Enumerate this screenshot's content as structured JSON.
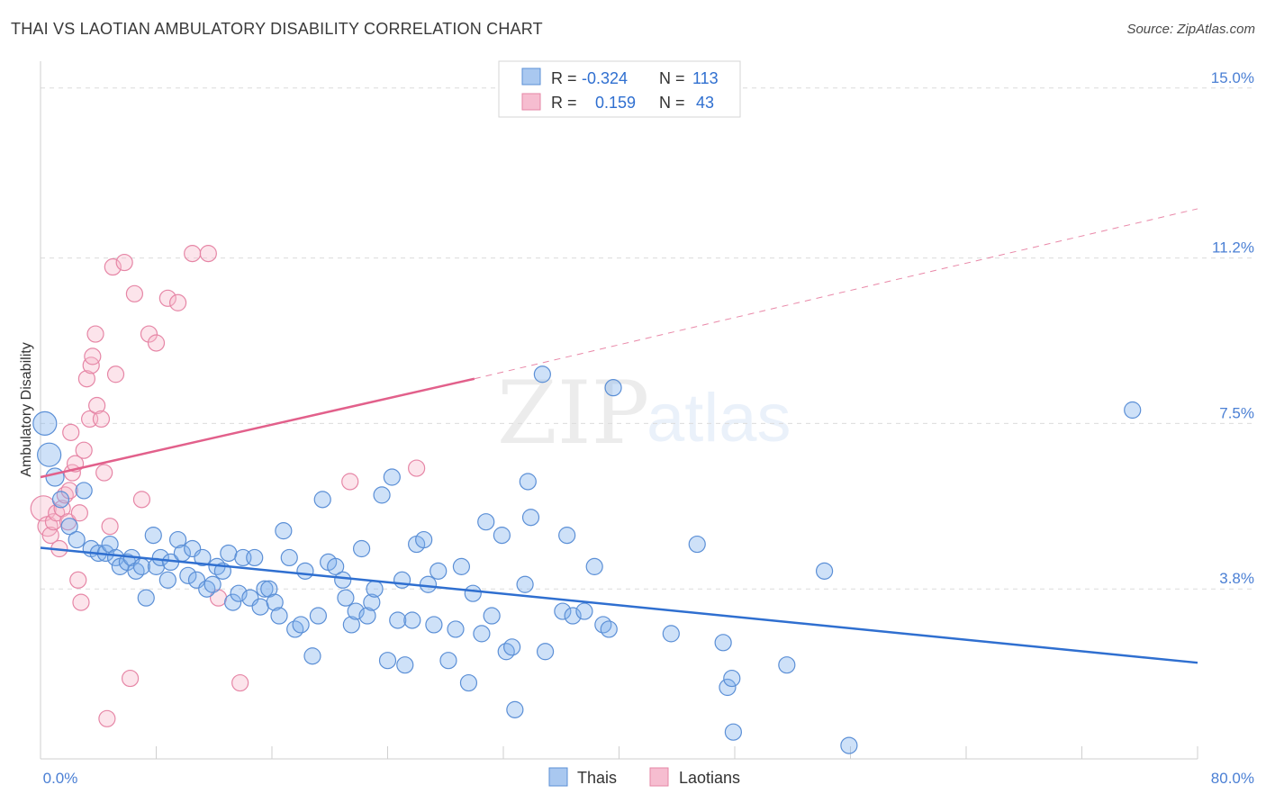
{
  "title": "THAI VS LAOTIAN AMBULATORY DISABILITY CORRELATION CHART",
  "source": "Source: ZipAtlas.com",
  "watermark": {
    "zip": "ZIP",
    "atlas": "atlas"
  },
  "legend_box": {
    "rows": [
      {
        "r_label": "R =",
        "r_value": "-0.324",
        "n_label": "N =",
        "n_value": "113",
        "color": "#a9c8f0",
        "stroke": "#5b8fd6"
      },
      {
        "r_label": "R =",
        "r_value": "0.159",
        "n_label": "N =",
        "n_value": "43",
        "color": "#f6bdd0",
        "stroke": "#e686a6"
      }
    ]
  },
  "bottom_legend": [
    {
      "label": "Thais",
      "color": "#a9c8f0",
      "stroke": "#5b8fd6"
    },
    {
      "label": "Laotians",
      "color": "#f6bdd0",
      "stroke": "#e686a6"
    }
  ],
  "chart_data": {
    "type": "scatter",
    "ylabel": "Ambulatory Disability",
    "xlabel": "",
    "xlim": [
      0,
      80
    ],
    "ylim": [
      0,
      15.6
    ],
    "x_tick_labels": {
      "left": "0.0%",
      "right": "80.0%"
    },
    "y_ticks": [
      {
        "value": 3.8,
        "label": "3.8%"
      },
      {
        "value": 7.5,
        "label": "7.5%"
      },
      {
        "value": 11.2,
        "label": "11.2%"
      },
      {
        "value": 15.0,
        "label": "15.0%"
      }
    ],
    "grid": "horizontal dashed",
    "legend": "top-center",
    "series": [
      {
        "name": "Thais",
        "color": "#7fb0ec",
        "stroke": "#5b8fd6",
        "trend": {
          "x": [
            0,
            80
          ],
          "y": [
            4.72,
            2.15
          ],
          "style": "solid",
          "color": "#2f6fd0"
        },
        "points": [
          [
            0.3,
            7.5,
            13
          ],
          [
            0.6,
            6.8,
            13
          ],
          [
            1.0,
            6.3,
            10
          ],
          [
            1.4,
            5.8,
            9
          ],
          [
            2.0,
            5.2,
            9
          ],
          [
            2.5,
            4.9,
            9
          ],
          [
            3.0,
            6.0,
            9
          ],
          [
            3.5,
            4.7,
            9
          ],
          [
            4.0,
            4.6,
            9
          ],
          [
            4.5,
            4.6,
            9
          ],
          [
            4.8,
            4.8,
            9
          ],
          [
            5.2,
            4.5,
            9
          ],
          [
            5.5,
            4.3,
            9
          ],
          [
            6.0,
            4.4,
            9
          ],
          [
            6.3,
            4.5,
            9
          ],
          [
            6.6,
            4.2,
            9
          ],
          [
            7.0,
            4.3,
            9
          ],
          [
            7.3,
            3.6,
            9
          ],
          [
            7.8,
            5.0,
            9
          ],
          [
            8.0,
            4.3,
            9
          ],
          [
            8.3,
            4.5,
            9
          ],
          [
            8.8,
            4.0,
            9
          ],
          [
            9.0,
            4.4,
            9
          ],
          [
            9.5,
            4.9,
            9
          ],
          [
            9.8,
            4.6,
            9
          ],
          [
            10.2,
            4.1,
            9
          ],
          [
            10.5,
            4.7,
            9
          ],
          [
            10.8,
            4.0,
            9
          ],
          [
            11.2,
            4.5,
            9
          ],
          [
            11.5,
            3.8,
            9
          ],
          [
            11.9,
            3.9,
            9
          ],
          [
            12.2,
            4.3,
            9
          ],
          [
            12.6,
            4.2,
            9
          ],
          [
            13.0,
            4.6,
            9
          ],
          [
            13.3,
            3.5,
            9
          ],
          [
            13.7,
            3.7,
            9
          ],
          [
            14.0,
            4.5,
            9
          ],
          [
            14.5,
            3.6,
            9
          ],
          [
            14.8,
            4.5,
            9
          ],
          [
            15.2,
            3.4,
            9
          ],
          [
            15.5,
            3.8,
            9
          ],
          [
            15.8,
            3.8,
            9
          ],
          [
            16.2,
            3.5,
            9
          ],
          [
            16.5,
            3.2,
            9
          ],
          [
            16.8,
            5.1,
            9
          ],
          [
            17.2,
            4.5,
            9
          ],
          [
            17.6,
            2.9,
            9
          ],
          [
            18.0,
            3.0,
            9
          ],
          [
            18.3,
            4.2,
            9
          ],
          [
            18.8,
            2.3,
            9
          ],
          [
            19.2,
            3.2,
            9
          ],
          [
            19.5,
            5.8,
            9
          ],
          [
            19.9,
            4.4,
            9
          ],
          [
            20.4,
            4.3,
            9
          ],
          [
            20.9,
            4.0,
            9
          ],
          [
            21.1,
            3.6,
            9
          ],
          [
            21.5,
            3.0,
            9
          ],
          [
            21.8,
            3.3,
            9
          ],
          [
            22.2,
            4.7,
            9
          ],
          [
            22.6,
            3.2,
            9
          ],
          [
            22.9,
            3.5,
            9
          ],
          [
            23.1,
            3.8,
            9
          ],
          [
            23.6,
            5.9,
            9
          ],
          [
            24.0,
            2.2,
            9
          ],
          [
            24.3,
            6.3,
            9
          ],
          [
            24.7,
            3.1,
            9
          ],
          [
            25.0,
            4.0,
            9
          ],
          [
            25.2,
            2.1,
            9
          ],
          [
            25.7,
            3.1,
            9
          ],
          [
            26.0,
            4.8,
            9
          ],
          [
            26.5,
            4.9,
            9
          ],
          [
            26.8,
            3.9,
            9
          ],
          [
            27.2,
            3.0,
            9
          ],
          [
            27.5,
            4.2,
            9
          ],
          [
            28.2,
            2.2,
            9
          ],
          [
            28.7,
            2.9,
            9
          ],
          [
            29.1,
            4.3,
            9
          ],
          [
            29.6,
            1.7,
            9
          ],
          [
            29.9,
            3.7,
            9
          ],
          [
            30.5,
            2.8,
            9
          ],
          [
            30.8,
            5.3,
            9
          ],
          [
            31.2,
            3.2,
            9
          ],
          [
            31.9,
            5.0,
            9
          ],
          [
            32.2,
            2.4,
            9
          ],
          [
            32.6,
            2.5,
            9
          ],
          [
            32.8,
            1.1,
            9
          ],
          [
            33.5,
            3.9,
            9
          ],
          [
            33.7,
            6.2,
            9
          ],
          [
            33.9,
            5.4,
            9
          ],
          [
            34.7,
            8.6,
            9
          ],
          [
            34.9,
            2.4,
            9
          ],
          [
            36.1,
            3.3,
            9
          ],
          [
            36.4,
            5.0,
            9
          ],
          [
            36.8,
            3.2,
            9
          ],
          [
            37.6,
            3.3,
            9
          ],
          [
            38.3,
            4.3,
            9
          ],
          [
            38.9,
            3.0,
            9
          ],
          [
            39.3,
            2.9,
            9
          ],
          [
            39.6,
            8.3,
            9
          ],
          [
            43.6,
            2.8,
            9
          ],
          [
            45.4,
            4.8,
            9
          ],
          [
            47.2,
            2.6,
            9
          ],
          [
            47.5,
            1.6,
            9
          ],
          [
            47.8,
            1.8,
            9
          ],
          [
            47.9,
            0.6,
            9
          ],
          [
            51.6,
            2.1,
            9
          ],
          [
            54.2,
            4.2,
            9
          ],
          [
            55.9,
            0.3,
            9
          ],
          [
            75.5,
            7.8,
            9
          ]
        ]
      },
      {
        "name": "Laotians",
        "color": "#f6b7cb",
        "stroke": "#e686a6",
        "trend": {
          "x": [
            0,
            30
          ],
          "y": [
            6.3,
            8.5
          ],
          "style": "solid",
          "color": "#e2608b",
          "extension": {
            "x": [
              30,
              80
            ],
            "y": [
              8.5,
              12.3
            ],
            "style": "dashed"
          }
        },
        "points": [
          [
            0.2,
            5.6,
            14
          ],
          [
            0.5,
            5.2,
            11
          ],
          [
            0.7,
            5.0,
            9
          ],
          [
            0.9,
            5.3,
            9
          ],
          [
            1.1,
            5.5,
            9
          ],
          [
            1.3,
            4.7,
            9
          ],
          [
            1.5,
            5.6,
            9
          ],
          [
            1.7,
            5.9,
            9
          ],
          [
            1.9,
            5.3,
            9
          ],
          [
            2.0,
            6.0,
            9
          ],
          [
            2.1,
            7.3,
            9
          ],
          [
            2.2,
            6.4,
            9
          ],
          [
            2.4,
            6.6,
            9
          ],
          [
            2.6,
            4.0,
            9
          ],
          [
            2.7,
            5.5,
            9
          ],
          [
            2.8,
            3.5,
            9
          ],
          [
            3.0,
            6.9,
            9
          ],
          [
            3.2,
            8.5,
            9
          ],
          [
            3.4,
            7.6,
            9
          ],
          [
            3.5,
            8.8,
            9
          ],
          [
            3.6,
            9.0,
            9
          ],
          [
            3.8,
            9.5,
            9
          ],
          [
            3.9,
            7.9,
            9
          ],
          [
            4.2,
            7.6,
            9
          ],
          [
            4.4,
            6.4,
            9
          ],
          [
            4.6,
            0.9,
            9
          ],
          [
            4.8,
            5.2,
            9
          ],
          [
            5.0,
            11.0,
            9
          ],
          [
            5.2,
            8.6,
            9
          ],
          [
            5.8,
            11.1,
            9
          ],
          [
            6.2,
            1.8,
            9
          ],
          [
            6.5,
            10.4,
            9
          ],
          [
            7.0,
            5.8,
            9
          ],
          [
            7.5,
            9.5,
            9
          ],
          [
            8.0,
            9.3,
            9
          ],
          [
            8.8,
            10.3,
            9
          ],
          [
            9.5,
            10.2,
            9
          ],
          [
            10.5,
            11.3,
            9
          ],
          [
            11.6,
            11.3,
            9
          ],
          [
            12.3,
            3.6,
            9
          ],
          [
            13.8,
            1.7,
            9
          ],
          [
            21.4,
            6.2,
            9
          ],
          [
            26.0,
            6.5,
            9
          ]
        ]
      }
    ]
  }
}
